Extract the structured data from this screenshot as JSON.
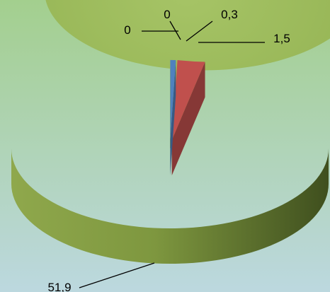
{
  "chart_data": {
    "type": "pie",
    "title": "",
    "style": "3d-exploded",
    "legend": "none",
    "background": [
      "#a3cf8e",
      "#bcd8df"
    ],
    "slices": [
      {
        "value": 0,
        "label": "0",
        "color": "#6f8fd0"
      },
      {
        "value": 0,
        "label": "0",
        "color": "#6f8fd0"
      },
      {
        "value": 0.3,
        "label": "0,3",
        "color": "#4f81bd"
      },
      {
        "value": 1.5,
        "label": "1,5",
        "color": "#c0504d"
      },
      {
        "value": 51.9,
        "label": "51,9",
        "color": "#9bbb59"
      }
    ]
  }
}
